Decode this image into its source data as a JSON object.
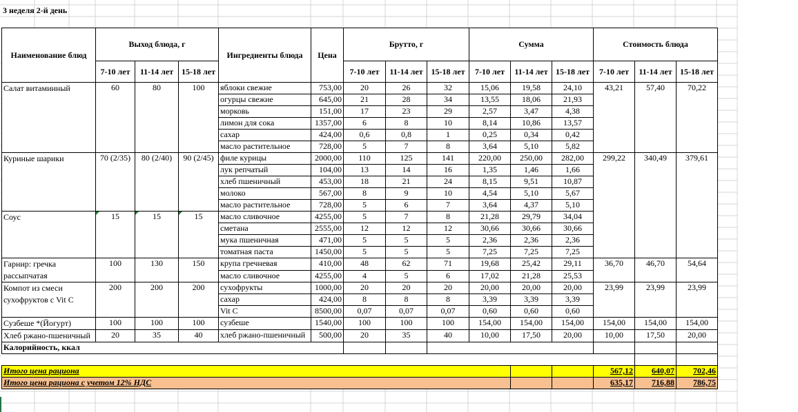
{
  "sheet_title": "3 неделя 2-й день",
  "headers": {
    "dish_name": "Наименование блюд",
    "yield": "Выход блюда, г",
    "ingredients": "Ингредиенты блюда",
    "price": "Цена",
    "brutto": "Брутто, г",
    "sum": "Сумма",
    "cost": "Стоимость блюда",
    "ages": [
      "7-10 лет",
      "11-14 лет",
      "15-18 лет"
    ]
  },
  "dishes": [
    {
      "name": "Салат витаминный",
      "yield": [
        "60",
        "80",
        "100"
      ],
      "cost": [
        "43,21",
        "57,40",
        "70,22"
      ],
      "ingredients": [
        {
          "name": "яблоки свежие",
          "price": "753,00",
          "brutto": [
            "20",
            "26",
            "32"
          ],
          "sum": [
            "15,06",
            "19,58",
            "24,10"
          ]
        },
        {
          "name": "огурцы свежие",
          "price": "645,00",
          "brutto": [
            "21",
            "28",
            "34"
          ],
          "sum": [
            "13,55",
            "18,06",
            "21,93"
          ]
        },
        {
          "name": "морковь",
          "price": "151,00",
          "brutto": [
            "17",
            "23",
            "29"
          ],
          "sum": [
            "2,57",
            "3,47",
            "4,38"
          ]
        },
        {
          "name": "лимон для сока",
          "price": "1357,00",
          "brutto": [
            "6",
            "8",
            "10"
          ],
          "sum": [
            "8,14",
            "10,86",
            "13,57"
          ]
        },
        {
          "name": "сахар",
          "price": "424,00",
          "brutto": [
            "0,6",
            "0,8",
            "1"
          ],
          "sum": [
            "0,25",
            "0,34",
            "0,42"
          ]
        },
        {
          "name": "масло растительное",
          "price": "728,00",
          "brutto": [
            "5",
            "7",
            "8"
          ],
          "sum": [
            "3,64",
            "5,10",
            "5,82"
          ]
        }
      ]
    },
    {
      "name": "Куриные шарики",
      "yield": [
        "70 (2/35)",
        "80 (2/40)",
        "90 (2/45)"
      ],
      "cost": [
        "299,22",
        "340,49",
        "379,61"
      ],
      "ingredients": [
        {
          "name": "филе курицы",
          "price": "2000,00",
          "brutto": [
            "110",
            "125",
            "141"
          ],
          "sum": [
            "220,00",
            "250,00",
            "282,00"
          ]
        },
        {
          "name": "лук репчатый",
          "price": "104,00",
          "brutto": [
            "13",
            "14",
            "16"
          ],
          "sum": [
            "1,35",
            "1,46",
            "1,66"
          ]
        },
        {
          "name": "хлеб пшеничный",
          "price": "453,00",
          "brutto": [
            "18",
            "21",
            "24"
          ],
          "sum": [
            "8,15",
            "9,51",
            "10,87"
          ]
        },
        {
          "name": "молоко",
          "price": "567,00",
          "brutto": [
            "8",
            "9",
            "10"
          ],
          "sum": [
            "4,54",
            "5,10",
            "5,67"
          ]
        },
        {
          "name": "масло растительное",
          "price": "728,00",
          "brutto": [
            "5",
            "6",
            "7"
          ],
          "sum": [
            "3,64",
            "4,37",
            "5,10"
          ]
        }
      ]
    },
    {
      "name": "Соус",
      "yield": [
        "15",
        "15",
        "15"
      ],
      "cost": [
        "",
        "",
        ""
      ],
      "error_flags": true,
      "ingredients": [
        {
          "name": "масло сливочное",
          "price": "4255,00",
          "brutto": [
            "5",
            "7",
            "8"
          ],
          "sum": [
            "21,28",
            "29,79",
            "34,04"
          ]
        },
        {
          "name": "сметана",
          "price": "2555,00",
          "brutto": [
            "12",
            "12",
            "12"
          ],
          "sum": [
            "30,66",
            "30,66",
            "30,66"
          ]
        },
        {
          "name": "мука пшеничная",
          "price": "471,00",
          "brutto": [
            "5",
            "5",
            "5"
          ],
          "sum": [
            "2,36",
            "2,36",
            "2,36"
          ]
        },
        {
          "name": "томатная паста",
          "price": "1450,00",
          "brutto": [
            "5",
            "5",
            "5"
          ],
          "sum": [
            "7,25",
            "7,25",
            "7,25"
          ]
        }
      ]
    },
    {
      "name": "Гарнир: гречка рассыпчатая",
      "yield": [
        "100",
        "130",
        "150"
      ],
      "cost": [
        "36,70",
        "46,70",
        "54,64"
      ],
      "ingredients": [
        {
          "name": "крупа гречневая",
          "price": "410,00",
          "brutto": [
            "48",
            "62",
            "71"
          ],
          "sum": [
            "19,68",
            "25,42",
            "29,11"
          ]
        },
        {
          "name": "масло сливочное",
          "price": "4255,00",
          "brutto": [
            "4",
            "5",
            "6"
          ],
          "sum": [
            "17,02",
            "21,28",
            "25,53"
          ]
        }
      ]
    },
    {
      "name": "Компот из смеси сухофруктов с Vit C",
      "yield": [
        "200",
        "200",
        "200"
      ],
      "cost": [
        "23,99",
        "23,99",
        "23,99"
      ],
      "ingredients": [
        {
          "name": "сухофрукты",
          "price": "1000,00",
          "brutto": [
            "20",
            "20",
            "20"
          ],
          "sum": [
            "20,00",
            "20,00",
            "20,00"
          ]
        },
        {
          "name": "сахар",
          "price": "424,00",
          "brutto": [
            "8",
            "8",
            "8"
          ],
          "sum": [
            "3,39",
            "3,39",
            "3,39"
          ]
        },
        {
          "name": "Vit C",
          "price": "8500,00",
          "brutto": [
            "0,07",
            "0,07",
            "0,07"
          ],
          "sum": [
            "0,60",
            "0,60",
            "0,60"
          ]
        }
      ]
    },
    {
      "name": "Сузбеше *(Йогурт)",
      "yield": [
        "100",
        "100",
        "100"
      ],
      "cost": [
        "154,00",
        "154,00",
        "154,00"
      ],
      "ingredients": [
        {
          "name": "сузбеше",
          "price": "1540,00",
          "brutto": [
            "100",
            "100",
            "100"
          ],
          "sum": [
            "154,00",
            "154,00",
            "154,00"
          ]
        }
      ]
    },
    {
      "name": "Хлеб ржано-пшеничный",
      "yield": [
        "20",
        "35",
        "40"
      ],
      "cost": [
        "10,00",
        "17,50",
        "20,00"
      ],
      "ingredients": [
        {
          "name": "хлеб ржано-пшеничный",
          "price": "500,00",
          "brutto": [
            "20",
            "35",
            "40"
          ],
          "sum": [
            "10,00",
            "17,50",
            "20,00"
          ]
        }
      ]
    }
  ],
  "calories_label": "Калорийность, ккал",
  "totals": {
    "total_label": "Итого цена рациона",
    "total_values": [
      "567,12",
      "640,07",
      "702,46"
    ],
    "total_vat_label": "Итого цена рациона с учетом 12% НДС",
    "total_vat_values": [
      "635,17",
      "716,88",
      "786,75"
    ]
  },
  "colors": {
    "total_row": "#ffff00",
    "vat_row": "#f8bf90",
    "gridline": "#d4d4d4"
  }
}
